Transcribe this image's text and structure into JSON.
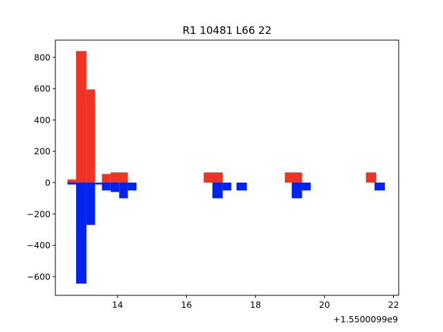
{
  "chart_data": {
    "type": "bar",
    "title": "R1 10481 L66 22",
    "xlabel": "",
    "ylabel": "",
    "x_offset_label": "+1.5500099e9",
    "xlim": [
      12.2,
      22.15
    ],
    "ylim": [
      -720,
      910
    ],
    "xticks": [
      14,
      16,
      18,
      20,
      22
    ],
    "xtick_labels": [
      "14",
      "16",
      "18",
      "20",
      "22"
    ],
    "yticks": [
      -600,
      -400,
      -200,
      0,
      200,
      400,
      600,
      800
    ],
    "ytick_labels": [
      "−600",
      "−400",
      "−200",
      "0",
      "200",
      "400",
      "600",
      "800"
    ],
    "grid": false,
    "series": [
      {
        "color": "#ee3224",
        "bars": [
          {
            "x0": 12.55,
            "x1": 12.8,
            "value": 20
          },
          {
            "x0": 12.8,
            "x1": 13.1,
            "value": 840
          },
          {
            "x0": 13.1,
            "x1": 13.35,
            "value": 595
          },
          {
            "x0": 13.55,
            "x1": 13.8,
            "value": 55
          },
          {
            "x0": 13.8,
            "x1": 14.3,
            "value": 65
          },
          {
            "x0": 16.5,
            "x1": 17.05,
            "value": 65
          },
          {
            "x0": 18.85,
            "x1": 19.35,
            "value": 65
          },
          {
            "x0": 21.2,
            "x1": 21.5,
            "value": 65
          }
        ]
      },
      {
        "color": "#0022ee",
        "bars": [
          {
            "x0": 12.55,
            "x1": 12.8,
            "value": -12
          },
          {
            "x0": 12.8,
            "x1": 13.1,
            "value": -645
          },
          {
            "x0": 13.1,
            "x1": 13.35,
            "value": -270
          },
          {
            "x0": 13.35,
            "x1": 13.55,
            "value": -12
          },
          {
            "x0": 13.55,
            "x1": 13.8,
            "value": -50
          },
          {
            "x0": 13.8,
            "x1": 14.05,
            "value": -60
          },
          {
            "x0": 14.05,
            "x1": 14.3,
            "value": -100
          },
          {
            "x0": 14.3,
            "x1": 14.55,
            "value": -50
          },
          {
            "x0": 16.75,
            "x1": 17.05,
            "value": -100
          },
          {
            "x0": 17.05,
            "x1": 17.3,
            "value": -50
          },
          {
            "x0": 17.45,
            "x1": 17.75,
            "value": -50
          },
          {
            "x0": 19.05,
            "x1": 19.35,
            "value": -100
          },
          {
            "x0": 19.35,
            "x1": 19.6,
            "value": -50
          },
          {
            "x0": 21.45,
            "x1": 21.75,
            "value": -50
          }
        ]
      }
    ]
  }
}
